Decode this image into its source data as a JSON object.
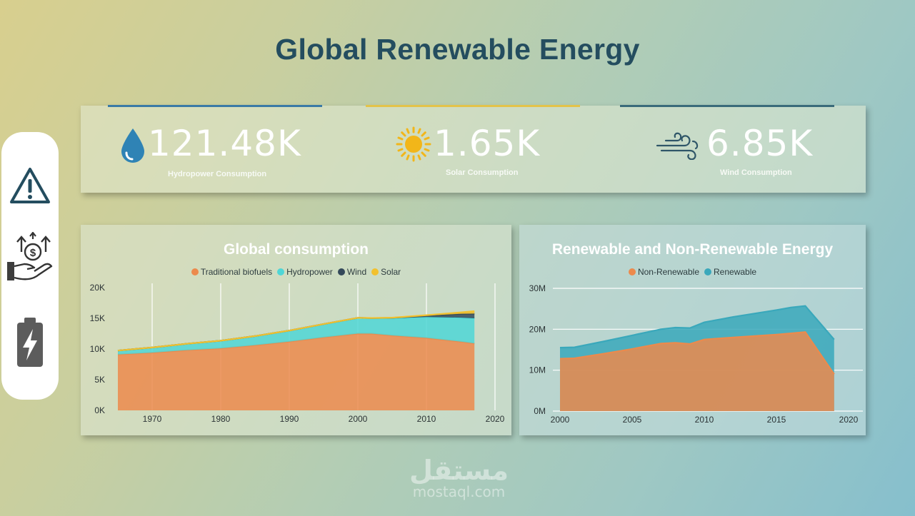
{
  "title": "Global Renewable Energy",
  "sidebar": {
    "icons": [
      "warning-icon",
      "money-hand-icon",
      "battery-charge-icon"
    ]
  },
  "kpis": [
    {
      "value": "121.48K",
      "label": "Hydropower Consumption",
      "icon": "water-drop-icon",
      "color": "#2f83b5",
      "accent": "#3a7aa6"
    },
    {
      "value": "1.65K",
      "label": "Solar Consumption",
      "icon": "sun-icon",
      "color": "#f2b619",
      "accent": "#e3c34a"
    },
    {
      "value": "6.85K",
      "label": "Wind Consumption",
      "icon": "wind-icon",
      "color": "#2f5668",
      "accent": "#3a6b7a"
    }
  ],
  "watermark": {
    "arabic": "مستقل",
    "latin": "mostaql.com"
  },
  "chart_data": [
    {
      "type": "area",
      "stacked": true,
      "title": "Global consumption",
      "x": [
        1965,
        1970,
        1975,
        1980,
        1985,
        1990,
        1995,
        2000,
        2002,
        2005,
        2010,
        2015,
        2017
      ],
      "series": [
        {
          "name": "Traditional biofuels",
          "color": "#ec8a4c",
          "values": [
            9100,
            9400,
            9800,
            10100,
            10600,
            11200,
            11900,
            12500,
            12500,
            12200,
            11800,
            11200,
            10900
          ]
        },
        {
          "name": "Hydropower",
          "color": "#4fd6d6",
          "values": [
            650,
            850,
            1050,
            1250,
            1500,
            1800,
            2150,
            2550,
            2500,
            2800,
            3400,
            3900,
            4100
          ]
        },
        {
          "name": "Wind",
          "color": "#34495a",
          "values": [
            0,
            0,
            0,
            0,
            0,
            0,
            10,
            30,
            40,
            80,
            250,
            620,
            760
          ]
        },
        {
          "name": "Solar",
          "color": "#f2c12e",
          "values": [
            0,
            0,
            0,
            0,
            0,
            0,
            0,
            0,
            10,
            20,
            60,
            240,
            400
          ]
        }
      ],
      "xlim": [
        1965,
        2020
      ],
      "xticks": [
        "1970",
        "1980",
        "1990",
        "2000",
        "2010",
        "2020"
      ],
      "ylim": [
        0,
        20000
      ],
      "yticks": [
        "0K",
        "5K",
        "10K",
        "15K",
        "20K"
      ],
      "legend": "top-center",
      "grid": "vertical"
    },
    {
      "type": "area",
      "stacked": false,
      "title": "Renewable and Non-Renewable Energy",
      "x": [
        2000,
        2001,
        2003,
        2005,
        2007,
        2008,
        2009,
        2010,
        2012,
        2015,
        2016,
        2017,
        2019
      ],
      "series": [
        {
          "name": "Non-Renewable",
          "color": "#ec8a4c",
          "values": [
            12800000,
            12900000,
            14000000,
            15200000,
            16500000,
            16700000,
            16400000,
            17500000,
            18000000,
            18700000,
            19000000,
            19300000,
            9000000
          ]
        },
        {
          "name": "Renewable",
          "color": "#3aa8bb",
          "values": [
            15500000,
            15600000,
            17000000,
            18500000,
            20000000,
            20400000,
            20300000,
            21700000,
            23000000,
            24700000,
            25300000,
            25700000,
            17500000
          ]
        }
      ],
      "xlim": [
        2000,
        2020
      ],
      "xticks": [
        "2000",
        "2005",
        "2010",
        "2015",
        "2020"
      ],
      "ylim": [
        0,
        30000000
      ],
      "yticks": [
        "0M",
        "10M",
        "20M",
        "30M"
      ],
      "legend": "top-center",
      "grid": "horizontal"
    }
  ]
}
